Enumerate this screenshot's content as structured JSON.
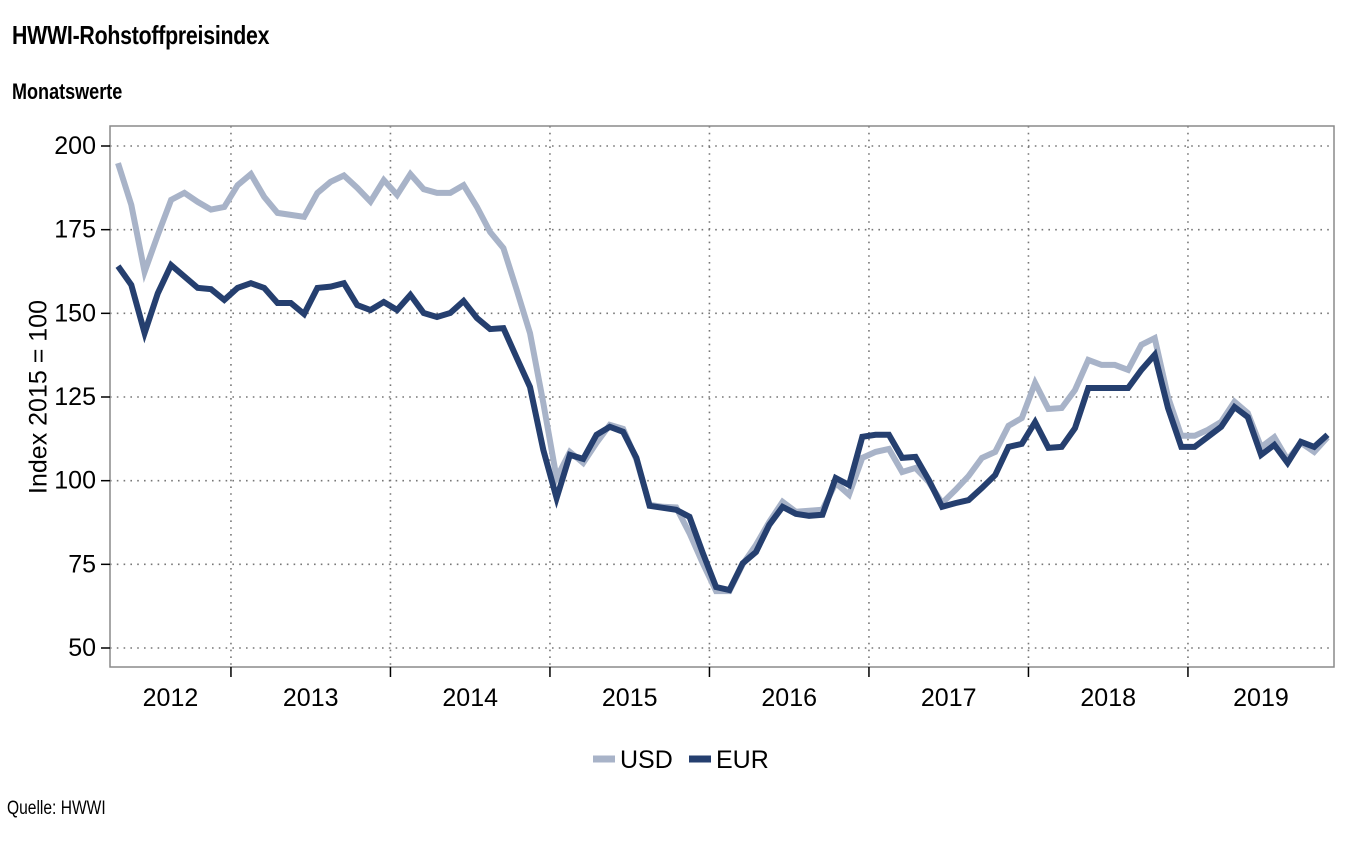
{
  "header": {
    "title": "HWWI-Rohstoffpreisindex",
    "subtitle": "Monatswerte"
  },
  "footer": {
    "source": "Quelle: HWWI"
  },
  "chart_data": {
    "type": "line",
    "title": "HWWI-Rohstoffpreisindex",
    "subtitle": "Monatswerte",
    "xlabel": "",
    "ylabel": "Index 2015 = 100",
    "ylim": [
      45,
      205
    ],
    "yticks": [
      50,
      75,
      100,
      125,
      150,
      175,
      200
    ],
    "ytick_labels": [
      "50",
      "75",
      "100",
      "125",
      "150",
      "175",
      "200"
    ],
    "x_start": "2012-04",
    "x_end": "2019-11",
    "x_frequency": "monthly",
    "xtick_labels": [
      "2012",
      "2013",
      "2014",
      "2015",
      "2016",
      "2017",
      "2018",
      "2019"
    ],
    "grid": true,
    "legend_position": "bottom-center",
    "series": [
      {
        "name": "USD",
        "color": "#a8b3c8",
        "values": [
          194.9,
          182.4,
          162.4,
          173.4,
          183.9,
          186.0,
          183.3,
          181.0,
          181.8,
          188.3,
          191.6,
          184.8,
          180.0,
          179.4,
          178.8,
          186.0,
          189.3,
          191.2,
          187.5,
          183.4,
          189.8,
          185.4,
          191.6,
          187.1,
          186.0,
          186.0,
          188.3,
          181.8,
          174.3,
          169.5,
          157.0,
          144.1,
          123.2,
          100.8,
          108.6,
          105.3,
          111.3,
          116.7,
          115.5,
          106.3,
          92.8,
          92.2,
          92.0,
          84.3,
          75.3,
          67.0,
          67.0,
          75.0,
          80.8,
          87.7,
          93.7,
          90.7,
          91.0,
          91.3,
          99.3,
          95.8,
          106.8,
          108.6,
          109.5,
          102.6,
          103.8,
          99.6,
          93.3,
          97.2,
          101.4,
          106.8,
          108.6,
          116.4,
          118.7,
          129.2,
          121.4,
          121.7,
          127.1,
          136.1,
          134.6,
          134.6,
          133.1,
          140.6,
          142.6,
          125.0,
          113.4,
          113.4,
          115.2,
          117.6,
          123.6,
          120.2,
          110.0,
          113.0,
          106.2,
          111.3,
          108.6,
          113.0
        ]
      },
      {
        "name": "EUR",
        "color": "#253f6f",
        "values": [
          164.1,
          158.5,
          144.1,
          156.0,
          164.4,
          161.0,
          157.6,
          157.2,
          154.0,
          157.6,
          159.0,
          157.6,
          153.1,
          153.1,
          149.8,
          157.6,
          158.0,
          159.0,
          152.5,
          151.0,
          153.4,
          151.0,
          155.5,
          150.1,
          148.9,
          150.1,
          153.7,
          148.6,
          145.3,
          145.6,
          136.7,
          128.0,
          109.2,
          94.8,
          107.7,
          106.5,
          113.7,
          116.1,
          114.6,
          106.8,
          92.5,
          91.9,
          91.3,
          89.2,
          78.4,
          68.2,
          67.3,
          75.3,
          78.7,
          86.8,
          92.2,
          90.1,
          89.5,
          89.8,
          100.8,
          98.7,
          113.1,
          113.7,
          113.7,
          106.8,
          107.1,
          100.2,
          92.2,
          93.3,
          94.2,
          97.8,
          101.7,
          110.1,
          111.0,
          117.5,
          109.8,
          110.1,
          115.7,
          127.7,
          127.7,
          127.7,
          127.7,
          133.1,
          137.6,
          121.7,
          110.1,
          110.1,
          113.1,
          116.1,
          122.0,
          119.0,
          107.7,
          110.7,
          105.3,
          111.6,
          110.1,
          113.7
        ]
      }
    ]
  }
}
